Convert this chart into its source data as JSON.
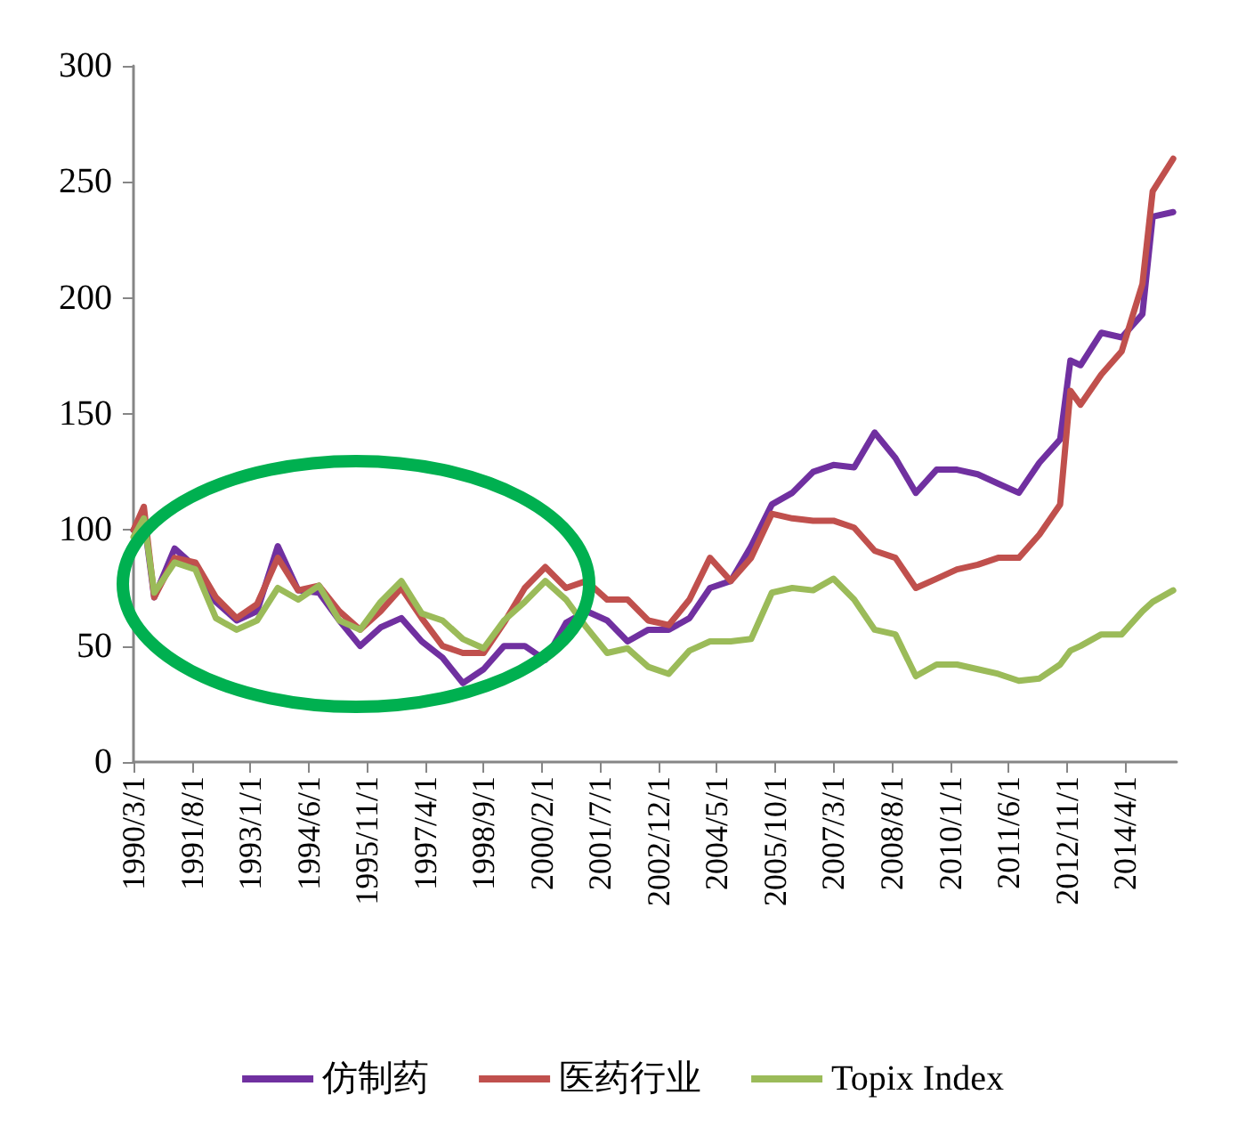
{
  "chart_data": {
    "type": "line",
    "x": [
      "1990-03",
      "1990-06",
      "1990-09",
      "1991-03",
      "1991-09",
      "1992-03",
      "1992-09",
      "1993-03",
      "1993-09",
      "1994-03",
      "1994-09",
      "1995-03",
      "1995-09",
      "1996-03",
      "1996-09",
      "1997-03",
      "1997-09",
      "1998-03",
      "1998-09",
      "1999-03",
      "1999-09",
      "2000-03",
      "2000-09",
      "2001-03",
      "2001-09",
      "2002-03",
      "2002-09",
      "2003-03",
      "2003-09",
      "2004-03",
      "2004-09",
      "2005-03",
      "2005-09",
      "2006-03",
      "2006-09",
      "2007-03",
      "2007-09",
      "2008-03",
      "2008-09",
      "2009-03",
      "2009-09",
      "2010-03",
      "2010-09",
      "2011-03",
      "2011-09",
      "2012-03",
      "2012-09",
      "2012-12",
      "2013-03",
      "2013-09",
      "2014-03",
      "2014-09",
      "2014-12",
      "2015-06"
    ],
    "series": [
      {
        "name": "仿制药",
        "color": "#7030a0",
        "values": [
          100,
          105,
          71,
          92,
          84,
          69,
          61,
          65,
          93,
          74,
          73,
          61,
          50,
          58,
          62,
          52,
          45,
          34,
          40,
          50,
          50,
          44,
          60,
          65,
          61,
          52,
          57,
          57,
          62,
          75,
          78,
          93,
          111,
          116,
          125,
          128,
          127,
          142,
          131,
          116,
          126,
          126,
          124,
          120,
          116,
          129,
          139,
          173,
          171,
          185,
          183,
          193,
          235,
          237
        ]
      },
      {
        "name": "医药行业",
        "color": "#c0504d",
        "values": [
          100,
          110,
          71,
          88,
          86,
          71,
          62,
          68,
          88,
          74,
          76,
          65,
          57,
          65,
          75,
          62,
          50,
          47,
          47,
          60,
          75,
          84,
          75,
          78,
          70,
          70,
          61,
          59,
          70,
          88,
          78,
          88,
          107,
          105,
          104,
          104,
          101,
          91,
          88,
          75,
          79,
          83,
          85,
          88,
          88,
          98,
          111,
          160,
          154,
          167,
          177,
          206,
          246,
          260
        ]
      },
      {
        "name": "Topix Index",
        "color": "#9bbb59",
        "values": [
          97,
          105,
          73,
          86,
          83,
          62,
          57,
          61,
          75,
          70,
          76,
          61,
          57,
          69,
          78,
          64,
          61,
          53,
          49,
          61,
          69,
          78,
          70,
          58,
          47,
          49,
          41,
          38,
          48,
          52,
          52,
          53,
          73,
          75,
          74,
          79,
          70,
          57,
          55,
          37,
          42,
          42,
          40,
          38,
          35,
          36,
          42,
          48,
          50,
          55,
          55,
          65,
          69,
          74
        ]
      }
    ],
    "xlim": [
      "1990-03-01",
      "2015-07-01"
    ],
    "xticks": [
      {
        "value": "1990-03-01",
        "label": "1990/3/1"
      },
      {
        "value": "1991-08-01",
        "label": "1991/8/1"
      },
      {
        "value": "1993-01-01",
        "label": "1993/1/1"
      },
      {
        "value": "1994-06-01",
        "label": "1994/6/1"
      },
      {
        "value": "1995-11-01",
        "label": "1995/11/1"
      },
      {
        "value": "1997-04-01",
        "label": "1997/4/1"
      },
      {
        "value": "1998-09-01",
        "label": "1998/9/1"
      },
      {
        "value": "2000-02-01",
        "label": "2000/2/1"
      },
      {
        "value": "2001-07-01",
        "label": "2001/7/1"
      },
      {
        "value": "2002-12-01",
        "label": "2002/12/1"
      },
      {
        "value": "2004-05-01",
        "label": "2004/5/1"
      },
      {
        "value": "2005-10-01",
        "label": "2005/10/1"
      },
      {
        "value": "2007-03-01",
        "label": "2007/3/1"
      },
      {
        "value": "2008-08-01",
        "label": "2008/8/1"
      },
      {
        "value": "2010-01-01",
        "label": "2010/1/1"
      },
      {
        "value": "2011-06-01",
        "label": "2011/6/1"
      },
      {
        "value": "2012-11-01",
        "label": "2012/11/1"
      },
      {
        "value": "2014-04-01",
        "label": "2014/4/1"
      }
    ],
    "ylim": [
      0,
      300
    ],
    "yticks": [
      0,
      50,
      100,
      150,
      200,
      250,
      300
    ],
    "grid": false,
    "legend": "bottom",
    "marker": "none",
    "line_style": "solid"
  }
}
